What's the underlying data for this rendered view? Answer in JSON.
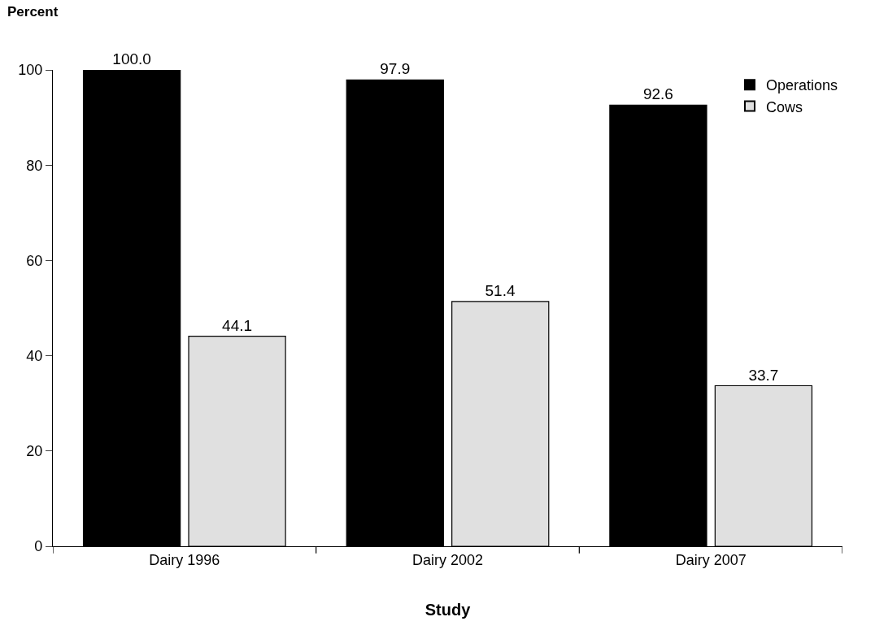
{
  "chart_data": {
    "type": "bar",
    "xlabel": "Study",
    "ylabel": "Percent",
    "categories": [
      "Dairy 1996",
      "Dairy 2002",
      "Dairy 2007"
    ],
    "series": [
      {
        "name": "Operations",
        "color": "#000000",
        "values": [
          100.0,
          97.9,
          92.6
        ],
        "value_labels": [
          "100.0",
          "97.9",
          "92.6"
        ]
      },
      {
        "name": "Cows",
        "color": "#e0e0e0",
        "values": [
          44.1,
          51.4,
          33.7
        ],
        "value_labels": [
          "44.1",
          "51.4",
          "33.7"
        ]
      }
    ],
    "ylim": [
      0,
      100
    ],
    "yticks": [
      0,
      20,
      40,
      60,
      80,
      100
    ],
    "legend": "top right"
  }
}
